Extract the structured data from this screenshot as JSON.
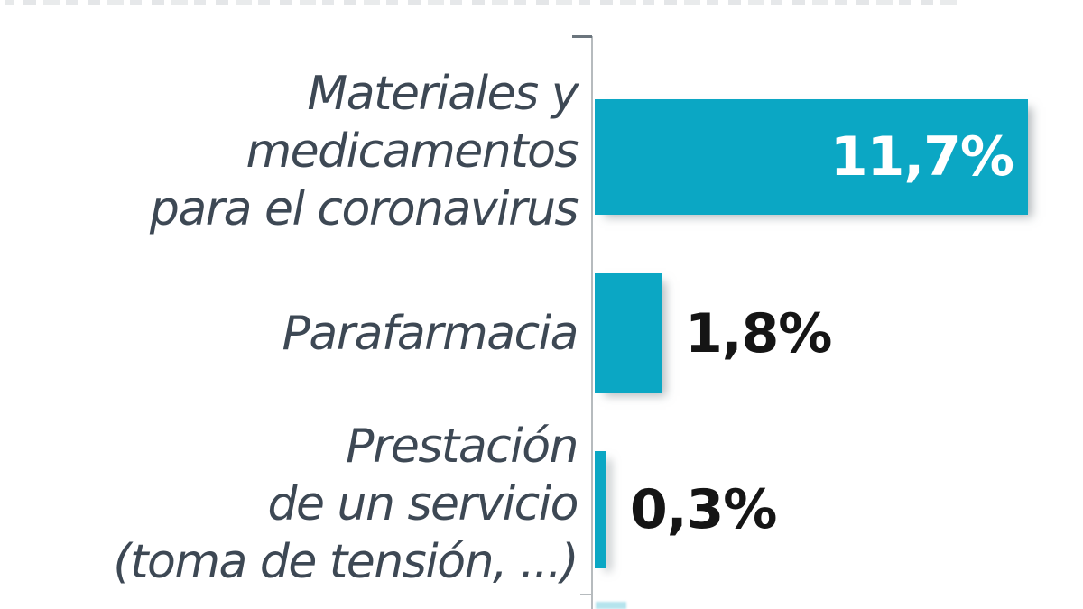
{
  "artifacts": {
    "cropped_title_strip_visible": true,
    "next_bar_sliver_visible": true
  },
  "chart_data": {
    "type": "bar",
    "orientation": "horizontal",
    "unit": "%",
    "decimal_separator": ",",
    "categories": [
      "Materiales y medicamentos para el coronavirus",
      "Parafarmacia",
      "Prestación de un servicio (toma de tensión, ...)"
    ],
    "category_lines": [
      [
        "Materiales y",
        "medicamentos",
        "para el coronavirus"
      ],
      [
        "Parafarmacia"
      ],
      [
        "Prestación",
        "de un servicio",
        "(toma de tensión, ...)"
      ]
    ],
    "values": [
      11.7,
      1.8,
      0.3
    ],
    "value_labels": [
      "11,7%",
      "1,8%",
      "0,3%"
    ],
    "value_label_inside_bar": [
      true,
      false,
      false
    ],
    "bar_color": "#0ba7c4",
    "label_color": "#3d4854",
    "value_color_inside": "#ffffff",
    "value_color_outside": "#151515",
    "axis_line_color": "#b6bbbe",
    "axis_tick_color": "#6b757d",
    "xlim": [
      0,
      12
    ],
    "grid": false,
    "legend": false,
    "title": ""
  }
}
